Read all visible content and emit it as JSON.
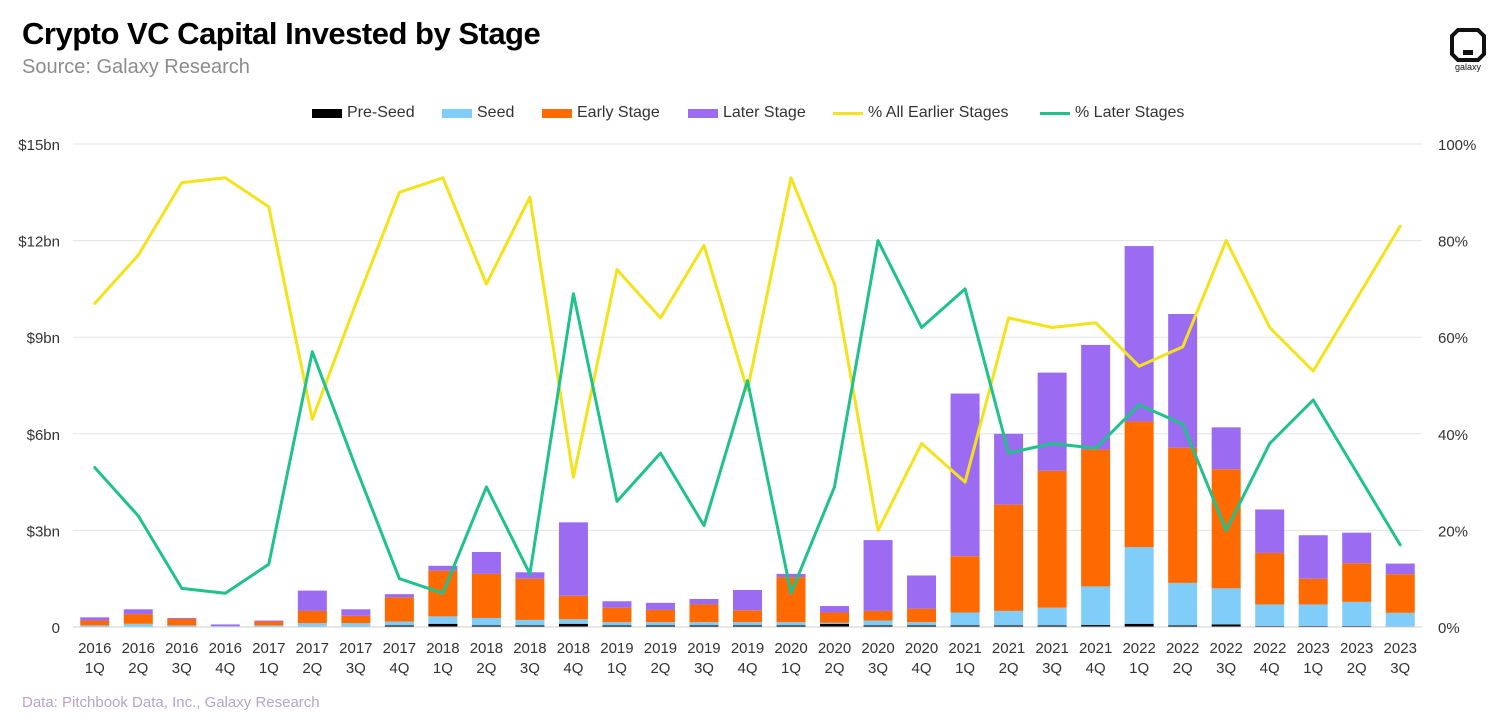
{
  "header": {
    "title": "Crypto VC Capital Invested by Stage",
    "subtitle": "Source: Galaxy Research"
  },
  "footer": {
    "note": "Data: Pitchbook Data, Inc., Galaxy Research"
  },
  "logo": {
    "icon": "galaxy-logo-icon",
    "text": "galaxy"
  },
  "colors": {
    "pre_seed": "#000000",
    "seed": "#7fcdf8",
    "early_stage": "#ff6a00",
    "later_stage": "#9b6bf2",
    "pct_earlier": "#f4e21a",
    "pct_later": "#1fc28a",
    "grid": "#e3e3e3"
  },
  "legend": [
    {
      "label": "Pre-Seed",
      "kind": "rect",
      "color": "#000000"
    },
    {
      "label": "Seed",
      "kind": "rect",
      "color": "#7fcdf8"
    },
    {
      "label": "Early Stage",
      "kind": "rect",
      "color": "#ff6a00"
    },
    {
      "label": "Later Stage",
      "kind": "rect",
      "color": "#9b6bf2"
    },
    {
      "label": "% All Earlier Stages",
      "kind": "line",
      "color": "#f4e21a"
    },
    {
      "label": "% Later Stages",
      "kind": "line",
      "color": "#1fc28a"
    }
  ],
  "chart_data": {
    "type": "bar",
    "stacked": true,
    "title": "Crypto VC Capital Invested by Stage",
    "subtitle": "Source: Galaxy Research",
    "categories": [
      [
        "2016",
        "1Q"
      ],
      [
        "2016",
        "2Q"
      ],
      [
        "2016",
        "3Q"
      ],
      [
        "2016",
        "4Q"
      ],
      [
        "2017",
        "1Q"
      ],
      [
        "2017",
        "2Q"
      ],
      [
        "2017",
        "3Q"
      ],
      [
        "2017",
        "4Q"
      ],
      [
        "2018",
        "1Q"
      ],
      [
        "2018",
        "2Q"
      ],
      [
        "2018",
        "3Q"
      ],
      [
        "2018",
        "4Q"
      ],
      [
        "2019",
        "1Q"
      ],
      [
        "2019",
        "2Q"
      ],
      [
        "2019",
        "3Q"
      ],
      [
        "2019",
        "4Q"
      ],
      [
        "2020",
        "1Q"
      ],
      [
        "2020",
        "2Q"
      ],
      [
        "2020",
        "3Q"
      ],
      [
        "2020",
        "4Q"
      ],
      [
        "2021",
        "1Q"
      ],
      [
        "2021",
        "2Q"
      ],
      [
        "2021",
        "3Q"
      ],
      [
        "2021",
        "4Q"
      ],
      [
        "2022",
        "1Q"
      ],
      [
        "2022",
        "2Q"
      ],
      [
        "2022",
        "3Q"
      ],
      [
        "2022",
        "4Q"
      ],
      [
        "2023",
        "1Q"
      ],
      [
        "2023",
        "2Q"
      ],
      [
        "2023",
        "3Q"
      ]
    ],
    "y_left": {
      "ticks": [
        "0",
        "$3bn",
        "$6bn",
        "$9bn",
        "$12bn",
        "$15bn"
      ],
      "ylim": [
        0,
        15
      ],
      "unit": "bn"
    },
    "y_right": {
      "ticks": [
        "0%",
        "20%",
        "40%",
        "60%",
        "80%",
        "100%"
      ],
      "ylim": [
        0,
        100
      ],
      "unit": "%"
    },
    "series": [
      {
        "name": "Pre-Seed",
        "axis": "left",
        "kind": "bar",
        "values": [
          0.01,
          0.01,
          0.01,
          0.0,
          0.01,
          0.02,
          0.02,
          0.05,
          0.1,
          0.05,
          0.05,
          0.1,
          0.05,
          0.05,
          0.05,
          0.05,
          0.05,
          0.1,
          0.05,
          0.05,
          0.05,
          0.05,
          0.05,
          0.06,
          0.1,
          0.05,
          0.08,
          0.03,
          0.03,
          0.03,
          0.02
        ]
      },
      {
        "name": "Seed",
        "axis": "left",
        "kind": "bar",
        "values": [
          0.04,
          0.09,
          0.04,
          0.03,
          0.04,
          0.1,
          0.1,
          0.12,
          0.23,
          0.23,
          0.17,
          0.14,
          0.1,
          0.1,
          0.1,
          0.1,
          0.1,
          0.03,
          0.15,
          0.1,
          0.4,
          0.45,
          0.55,
          1.2,
          2.38,
          1.32,
          1.12,
          0.67,
          0.67,
          0.75,
          0.42
        ]
      },
      {
        "name": "Early Stage",
        "axis": "left",
        "kind": "bar",
        "values": [
          0.15,
          0.3,
          0.2,
          0.0,
          0.12,
          0.38,
          0.23,
          0.75,
          1.42,
          1.37,
          1.28,
          0.73,
          0.45,
          0.38,
          0.55,
          0.37,
          1.4,
          0.32,
          0.3,
          0.42,
          1.75,
          3.3,
          4.25,
          4.25,
          3.9,
          4.2,
          3.7,
          1.6,
          0.8,
          1.2,
          1.2
        ]
      },
      {
        "name": "Later Stage",
        "axis": "left",
        "kind": "bar",
        "values": [
          0.1,
          0.15,
          0.03,
          0.05,
          0.03,
          0.63,
          0.2,
          0.1,
          0.15,
          0.68,
          0.2,
          2.28,
          0.2,
          0.22,
          0.17,
          0.63,
          0.1,
          0.2,
          2.2,
          1.03,
          5.05,
          2.2,
          3.05,
          3.25,
          5.45,
          4.15,
          1.3,
          1.35,
          1.35,
          0.95,
          0.33
        ]
      },
      {
        "name": "% All Earlier Stages",
        "axis": "right",
        "kind": "line",
        "values": [
          67,
          77,
          92,
          93,
          87,
          43,
          67,
          90,
          93,
          71,
          89,
          31,
          74,
          64,
          79,
          49,
          93,
          71,
          20,
          38,
          30,
          64,
          62,
          63,
          54,
          58,
          80,
          62,
          53,
          68,
          83
        ]
      },
      {
        "name": "% Later Stages",
        "axis": "right",
        "kind": "line",
        "values": [
          33,
          23,
          8,
          7,
          13,
          57,
          33,
          10,
          7,
          29,
          11,
          69,
          26,
          36,
          21,
          51,
          7,
          29,
          80,
          62,
          70,
          36,
          38,
          37,
          46,
          42,
          20,
          38,
          47,
          32,
          17
        ]
      }
    ]
  }
}
